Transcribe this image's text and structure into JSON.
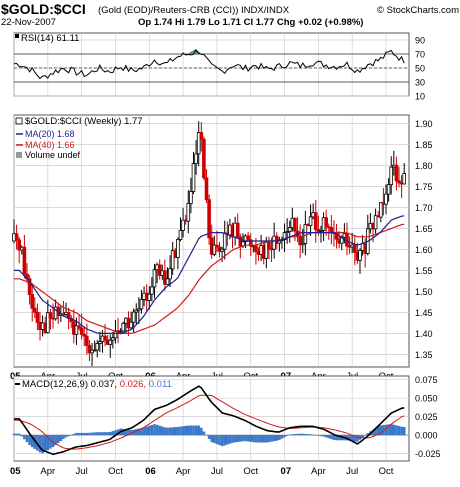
{
  "header": {
    "symbol": "$GOLD:$CCI",
    "description": "(Gold (EOD)/Reuters-CRB (CCI)) INDX/INDX",
    "brand": "© StockCharts.com",
    "date": "22-Nov-2007",
    "quote": "Op 1.74 Hi 1.79 Lo 1.71 Cl 1.77 Chg +0.02 (+0.98%)"
  },
  "colors": {
    "price_up": "#000000",
    "price_down": "#cc0000",
    "ma20": "#1f1f8f",
    "ma40": "#d11a1a",
    "rsi": "#000000",
    "rsi_fill": "#5f9a5f",
    "macd": "#000000",
    "signal": "#d11a1a",
    "histogram": "#3a78c8",
    "grid": "#cfcfcf",
    "panel_bg": "#ffffff",
    "tick_text": "#000000"
  },
  "chart_data": [
    {
      "type": "line",
      "panel": "rsi",
      "legend": "RSI(14) 61.11",
      "ylim": [
        10,
        100
      ],
      "y_ticks": [
        10,
        30,
        50,
        70,
        90
      ],
      "reference_lines": [
        30,
        50,
        70
      ],
      "x": [
        "2005-01",
        "2005-02",
        "2005-03",
        "2005-04",
        "2005-05",
        "2005-06",
        "2005-07",
        "2005-08",
        "2005-09",
        "2005-10",
        "2005-11",
        "2005-12",
        "2006-01",
        "2006-02",
        "2006-03",
        "2006-04",
        "2006-05",
        "2006-06",
        "2006-07",
        "2006-08",
        "2006-09",
        "2006-10",
        "2006-11",
        "2006-12",
        "2007-01",
        "2007-02",
        "2007-03",
        "2007-04",
        "2007-05",
        "2007-06",
        "2007-07",
        "2007-08",
        "2007-09",
        "2007-10",
        "2007-11"
      ],
      "values": [
        56,
        48,
        35,
        44,
        50,
        44,
        40,
        50,
        45,
        52,
        46,
        50,
        62,
        55,
        66,
        70,
        75,
        52,
        45,
        55,
        49,
        54,
        48,
        52,
        57,
        53,
        58,
        55,
        52,
        56,
        46,
        56,
        62,
        74,
        61
      ]
    },
    {
      "type": "candlestick",
      "panel": "price",
      "legend": "$GOLD:$CCI (Weekly) 1.77",
      "ylim": [
        1.32,
        1.92
      ],
      "y_ticks": [
        1.35,
        1.4,
        1.45,
        1.5,
        1.55,
        1.6,
        1.65,
        1.7,
        1.75,
        1.8,
        1.85,
        1.9
      ],
      "x_ticks": [
        "05",
        "Apr",
        "Jul",
        "Oct",
        "06",
        "Apr",
        "Jul",
        "Oct",
        "07",
        "Apr",
        "Jul",
        "Oct"
      ],
      "key_points": {
        "x": [
          "2005-01",
          "2005-02",
          "2005-03",
          "2005-04",
          "2005-05",
          "2005-06",
          "2005-07",
          "2005-08",
          "2005-09",
          "2005-10",
          "2005-11",
          "2005-12",
          "2006-01",
          "2006-02",
          "2006-03",
          "2006-04",
          "2006-05",
          "2006-06",
          "2006-07",
          "2006-08",
          "2006-09",
          "2006-10",
          "2006-11",
          "2006-12",
          "2007-01",
          "2007-02",
          "2007-03",
          "2007-04",
          "2007-05",
          "2007-06",
          "2007-07",
          "2007-08",
          "2007-09",
          "2007-10",
          "2007-11"
        ],
        "close": [
          1.62,
          1.48,
          1.42,
          1.44,
          1.45,
          1.4,
          1.38,
          1.37,
          1.38,
          1.42,
          1.43,
          1.47,
          1.55,
          1.52,
          1.62,
          1.7,
          1.88,
          1.58,
          1.62,
          1.65,
          1.62,
          1.61,
          1.6,
          1.63,
          1.66,
          1.62,
          1.68,
          1.65,
          1.62,
          1.62,
          1.57,
          1.63,
          1.7,
          1.8,
          1.77
        ]
      },
      "series": [
        {
          "name": "MA(20) 1.68",
          "values": [
            1.55,
            1.52,
            1.48,
            1.46,
            1.44,
            1.43,
            1.41,
            1.4,
            1.4,
            1.4,
            1.41,
            1.44,
            1.48,
            1.51,
            1.53,
            1.58,
            1.63,
            1.64,
            1.64,
            1.63,
            1.62,
            1.62,
            1.62,
            1.62,
            1.63,
            1.64,
            1.64,
            1.64,
            1.64,
            1.62,
            1.61,
            1.62,
            1.64,
            1.67,
            1.68
          ]
        },
        {
          "name": "MA(40) 1.66",
          "values": [
            1.53,
            1.52,
            1.5,
            1.48,
            1.46,
            1.45,
            1.43,
            1.42,
            1.41,
            1.4,
            1.4,
            1.41,
            1.42,
            1.44,
            1.46,
            1.49,
            1.53,
            1.56,
            1.58,
            1.6,
            1.61,
            1.61,
            1.62,
            1.62,
            1.63,
            1.63,
            1.64,
            1.64,
            1.64,
            1.64,
            1.63,
            1.63,
            1.64,
            1.65,
            1.66
          ]
        }
      ],
      "extra_legend": "Volume undef"
    },
    {
      "type": "line",
      "panel": "macd",
      "legend": "MACD(12,26,9)",
      "legend_values": {
        "macd": "0.037,",
        "signal": "0.026,",
        "histogram": "0.011"
      },
      "ylim": [
        -0.035,
        0.08
      ],
      "y_ticks": [
        -0.025,
        0.0,
        0.025,
        0.05,
        0.075
      ],
      "x_ticks": [
        "05",
        "Apr",
        "Jul",
        "Oct",
        "06",
        "Apr",
        "Jul",
        "Oct",
        "07",
        "Apr",
        "Jul",
        "Oct"
      ],
      "x": [
        "2005-01",
        "2005-02",
        "2005-03",
        "2005-04",
        "2005-05",
        "2005-06",
        "2005-07",
        "2005-08",
        "2005-09",
        "2005-10",
        "2005-11",
        "2005-12",
        "2006-01",
        "2006-02",
        "2006-03",
        "2006-04",
        "2006-05",
        "2006-06",
        "2006-07",
        "2006-08",
        "2006-09",
        "2006-10",
        "2006-11",
        "2006-12",
        "2007-01",
        "2007-02",
        "2007-03",
        "2007-04",
        "2007-05",
        "2007-06",
        "2007-07",
        "2007-08",
        "2007-09",
        "2007-10",
        "2007-11"
      ],
      "series": [
        {
          "name": "macd",
          "values": [
            0.022,
            0.0,
            -0.02,
            -0.026,
            -0.022,
            -0.016,
            -0.014,
            -0.01,
            -0.006,
            0.005,
            0.01,
            0.02,
            0.035,
            0.04,
            0.048,
            0.058,
            0.067,
            0.045,
            0.03,
            0.026,
            0.02,
            0.012,
            0.006,
            0.004,
            0.01,
            0.012,
            0.012,
            0.008,
            0.0,
            -0.004,
            -0.012,
            0.0,
            0.015,
            0.03,
            0.037
          ]
        },
        {
          "name": "signal",
          "values": [
            0.02,
            0.015,
            0.005,
            -0.01,
            -0.018,
            -0.019,
            -0.017,
            -0.014,
            -0.01,
            -0.004,
            0.003,
            0.01,
            0.02,
            0.03,
            0.037,
            0.045,
            0.054,
            0.054,
            0.045,
            0.036,
            0.028,
            0.022,
            0.016,
            0.011,
            0.009,
            0.01,
            0.011,
            0.01,
            0.007,
            0.003,
            -0.003,
            -0.004,
            0.002,
            0.015,
            0.026
          ]
        },
        {
          "name": "histogram",
          "values": [
            0.002,
            -0.015,
            -0.025,
            -0.016,
            -0.004,
            0.003,
            0.003,
            0.004,
            0.004,
            0.009,
            0.007,
            0.01,
            0.015,
            0.01,
            0.011,
            0.013,
            0.013,
            -0.009,
            -0.015,
            -0.01,
            -0.008,
            -0.01,
            -0.01,
            -0.007,
            0.001,
            0.002,
            0.001,
            -0.002,
            -0.007,
            -0.007,
            -0.009,
            0.004,
            0.013,
            0.015,
            0.011
          ]
        }
      ]
    }
  ]
}
